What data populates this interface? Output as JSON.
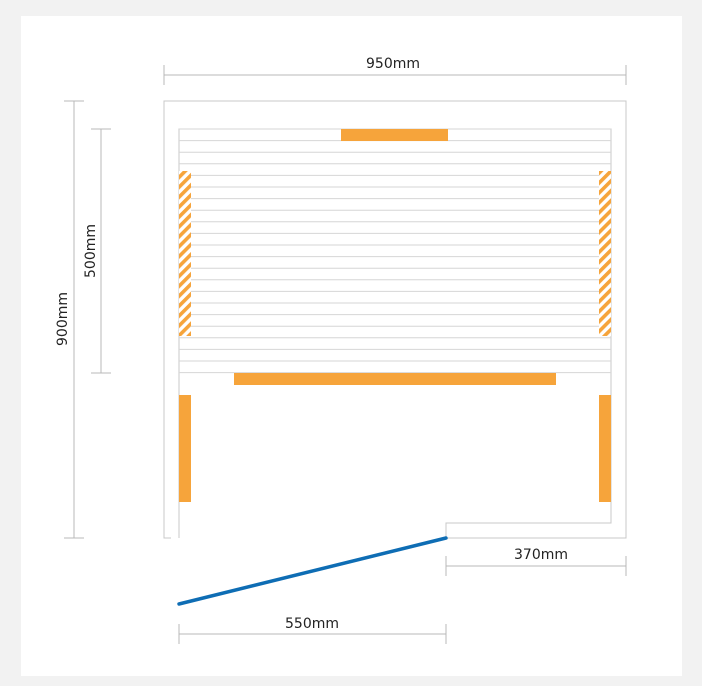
{
  "colors": {
    "page_background": "#f2f2f2",
    "frame_background": "#ffffff",
    "outline": "#c8c8c8",
    "slats": "#d6d6d6",
    "heater": "#f6a43b",
    "door": "#0e6db4",
    "dimension_line": "#b8b8b8",
    "text": "#222222"
  },
  "dimensions": {
    "width_label": "950mm",
    "depth_label": "900mm",
    "bench_height_label": "500mm",
    "right_segment_label": "370mm",
    "door_label": "550mm"
  }
}
